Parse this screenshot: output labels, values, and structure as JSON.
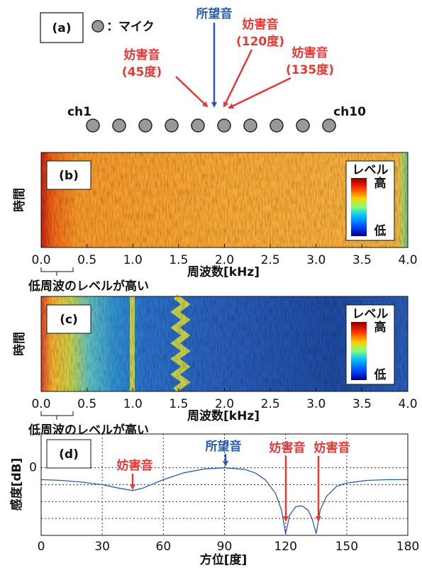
{
  "panel_a": {
    "label": "(a)",
    "legend": "：マイク",
    "target": "所望音",
    "interferers": [
      {
        "name": "妨害音",
        "angle": "(45度)"
      },
      {
        "name": "妨害音",
        "angle": "(120度)"
      },
      {
        "name": "妨害音",
        "angle": "(135度)"
      }
    ],
    "channels": [
      "ch1",
      "ch10"
    ],
    "target_color": "#2a5caa",
    "interferer_color": "#e53935"
  },
  "chart_data": [
    {
      "type": "heatmap",
      "label": "(b)",
      "xlabel": "周波数[kHz]",
      "ylabel": "時間",
      "colorbar_title": "レベル",
      "colorbar_high": "高",
      "colorbar_low": "低",
      "annotation": "低周波のレベルが高い",
      "xlim": [
        0,
        4
      ],
      "xticks": [
        {
          "value": 0,
          "label": "0.0"
        },
        0.5,
        {
          "value": 1,
          "label": "1.0"
        },
        1.5,
        {
          "value": 2,
          "label": "2.0"
        },
        2.5,
        {
          "value": 3,
          "label": "3.0"
        },
        3.5,
        {
          "value": 4,
          "label": "4.0"
        }
      ]
    },
    {
      "type": "heatmap",
      "label": "(c)",
      "xlabel": "周波数[kHz]",
      "ylabel": "時間",
      "colorbar_title": "レベル",
      "colorbar_high": "高",
      "colorbar_low": "低",
      "annotation": "低周波のレベルが高い",
      "xlim": [
        0,
        4
      ],
      "xticks": [
        {
          "value": 0,
          "label": "0.0"
        },
        0.5,
        {
          "value": 1,
          "label": "1.0"
        },
        1.5,
        {
          "value": 2,
          "label": "2.0"
        },
        2.5,
        {
          "value": 3,
          "label": "3.0"
        },
        3.5,
        {
          "value": 4,
          "label": "4.0"
        }
      ]
    },
    {
      "type": "line",
      "label": "(d)",
      "xlabel": "方位[度]",
      "ylabel": "感度[dB]",
      "xlim": [
        0,
        180
      ],
      "xticks": [
        0,
        30,
        60,
        90,
        120,
        150,
        180
      ],
      "ylim": [
        -40,
        20
      ],
      "yticks": [
        0
      ],
      "minor_yticks": [
        -30,
        -20,
        -10
      ],
      "grid": true,
      "annotations": [
        {
          "text": "所望音",
          "color": "#2a5caa"
        },
        {
          "text": "妨害音",
          "color": "#e53935"
        },
        {
          "text": "妨害音",
          "color": "#e53935"
        },
        {
          "text": "妨害音",
          "color": "#e53935"
        }
      ],
      "series": [
        {
          "color": "#2a5caa",
          "x": [
            0,
            10,
            20,
            30,
            38,
            45,
            50,
            60,
            70,
            80,
            90,
            100,
            105,
            110,
            115,
            118,
            120,
            122,
            125,
            128,
            131,
            133,
            135,
            137,
            140,
            145,
            150,
            160,
            170,
            180
          ],
          "values": [
            -7,
            -7.5,
            -8.5,
            -10,
            -12,
            -13.5,
            -12,
            -7,
            -3,
            -0.7,
            0,
            -1,
            -3,
            -7,
            -15,
            -25,
            -39,
            -28,
            -23,
            -22.5,
            -25,
            -30,
            -39,
            -25,
            -17,
            -11,
            -9,
            -7.5,
            -7,
            -7
          ]
        }
      ]
    }
  ]
}
